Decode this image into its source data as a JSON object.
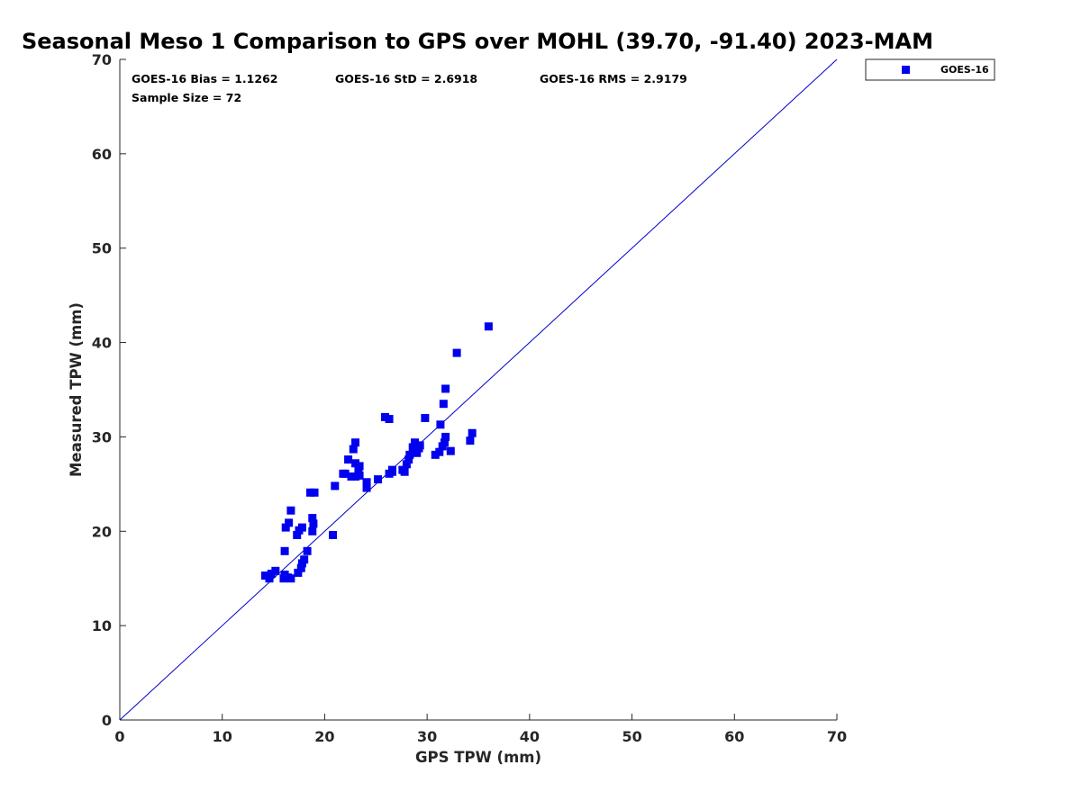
{
  "chart_data": {
    "type": "scatter",
    "title": "Seasonal Meso 1 Comparison to GPS over MOHL (39.70, -91.40) 2023-MAM",
    "xlabel": "GPS TPW (mm)",
    "ylabel": "Measured TPW (mm)",
    "xlim": [
      0,
      70
    ],
    "ylim": [
      0,
      70
    ],
    "xticks": [
      "0",
      "10",
      "20",
      "30",
      "40",
      "50",
      "60",
      "70"
    ],
    "yticks": [
      "0",
      "10",
      "20",
      "30",
      "40",
      "50",
      "60",
      "70"
    ],
    "grid": false,
    "legend_position": "outside-top-right",
    "reference_line": "1:1",
    "stats": {
      "bias": "GOES-16 Bias = 1.1262",
      "std": "GOES-16 StD = 2.6918",
      "rms": "GOES-16 RMS = 2.9179",
      "sample": "Sample Size = 72"
    },
    "marker_color": "#0000ee",
    "line_color": "#0000cc",
    "series": [
      {
        "name": "GOES-16",
        "points": [
          [
            14.2,
            15.3
          ],
          [
            14.6,
            15.0
          ],
          [
            14.8,
            15.5
          ],
          [
            15.2,
            15.8
          ],
          [
            16.0,
            15.0
          ],
          [
            16.1,
            15.4
          ],
          [
            16.4,
            15.1
          ],
          [
            16.7,
            15.0
          ],
          [
            17.4,
            15.6
          ],
          [
            17.7,
            16.1
          ],
          [
            17.8,
            16.6
          ],
          [
            18.0,
            17.0
          ],
          [
            18.3,
            17.9
          ],
          [
            16.1,
            17.9
          ],
          [
            16.2,
            20.4
          ],
          [
            16.5,
            20.9
          ],
          [
            16.7,
            22.2
          ],
          [
            17.3,
            19.6
          ],
          [
            17.5,
            20.1
          ],
          [
            17.8,
            20.4
          ],
          [
            18.6,
            24.1
          ],
          [
            19.0,
            24.1
          ],
          [
            18.8,
            21.4
          ],
          [
            18.9,
            20.8
          ],
          [
            18.8,
            20.0
          ],
          [
            20.8,
            19.6
          ],
          [
            21.0,
            24.8
          ],
          [
            21.8,
            26.1
          ],
          [
            22.3,
            27.6
          ],
          [
            22.6,
            25.8
          ],
          [
            22.8,
            28.7
          ],
          [
            23.0,
            29.4
          ],
          [
            23.0,
            27.2
          ],
          [
            23.0,
            25.8
          ],
          [
            23.3,
            26.6
          ],
          [
            23.4,
            25.9
          ],
          [
            24.1,
            24.6
          ],
          [
            24.1,
            25.2
          ],
          [
            25.2,
            25.5
          ],
          [
            25.9,
            32.1
          ],
          [
            26.3,
            31.9
          ],
          [
            26.3,
            26.1
          ],
          [
            26.6,
            26.3
          ],
          [
            26.6,
            26.5
          ],
          [
            27.6,
            26.5
          ],
          [
            27.8,
            26.3
          ],
          [
            28.0,
            27.1
          ],
          [
            28.2,
            27.6
          ],
          [
            28.3,
            28.1
          ],
          [
            28.6,
            28.9
          ],
          [
            28.8,
            29.4
          ],
          [
            28.9,
            28.5
          ],
          [
            29.1,
            29.0
          ],
          [
            29.2,
            28.8
          ],
          [
            29.3,
            29.1
          ],
          [
            29.8,
            32.0
          ],
          [
            30.8,
            28.1
          ],
          [
            31.2,
            28.4
          ],
          [
            31.3,
            31.3
          ],
          [
            31.5,
            29.0
          ],
          [
            31.6,
            33.5
          ],
          [
            31.7,
            29.4
          ],
          [
            31.8,
            30.0
          ],
          [
            31.8,
            35.1
          ],
          [
            32.3,
            28.5
          ],
          [
            32.9,
            38.9
          ],
          [
            34.2,
            29.6
          ],
          [
            34.4,
            30.4
          ],
          [
            36.0,
            41.7
          ],
          [
            23.4,
            26.9
          ],
          [
            22.0,
            26.1
          ],
          [
            29.0,
            28.3
          ]
        ]
      }
    ]
  }
}
